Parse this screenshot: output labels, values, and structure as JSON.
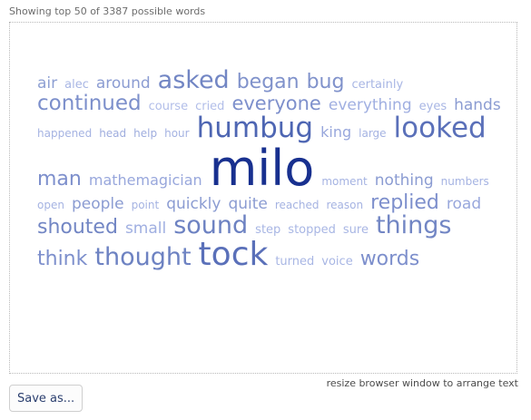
{
  "header": {
    "showing_text": "Showing top 50 of 3387 possible words"
  },
  "cloud": {
    "words": [
      {
        "text": "air",
        "size": 17,
        "color": "#8ea0d3"
      },
      {
        "text": "alec",
        "size": 13,
        "color": "#a8b6e4"
      },
      {
        "text": "around",
        "size": 17,
        "color": "#8b9cd2"
      },
      {
        "text": "asked",
        "size": 27,
        "color": "#7286c4"
      },
      {
        "text": "began",
        "size": 22,
        "color": "#8092cb"
      },
      {
        "text": "bug",
        "size": 22,
        "color": "#8092cb"
      },
      {
        "text": "certainly",
        "size": 13,
        "color": "#a8b6e4"
      },
      {
        "text": "continued",
        "size": 23,
        "color": "#7c8fcb"
      },
      {
        "text": "course",
        "size": 13,
        "color": "#b2bee9"
      },
      {
        "text": "cried",
        "size": 13,
        "color": "#b2bee9"
      },
      {
        "text": "everyone",
        "size": 21,
        "color": "#7e90cc"
      },
      {
        "text": "everything",
        "size": 17,
        "color": "#a0afe1"
      },
      {
        "text": "eyes",
        "size": 13,
        "color": "#a8b6e4"
      },
      {
        "text": "hands",
        "size": 17,
        "color": "#8b9cd2"
      },
      {
        "text": "happened",
        "size": 12,
        "color": "#a5b3e2"
      },
      {
        "text": "head",
        "size": 12,
        "color": "#9fadde"
      },
      {
        "text": "help",
        "size": 12,
        "color": "#9fadde"
      },
      {
        "text": "hour",
        "size": 12,
        "color": "#a5b3e2"
      },
      {
        "text": "humbug",
        "size": 31,
        "color": "#4e66b3"
      },
      {
        "text": "king",
        "size": 16,
        "color": "#98a7dc"
      },
      {
        "text": "large",
        "size": 12,
        "color": "#a5b3e2"
      },
      {
        "text": "looked",
        "size": 31,
        "color": "#5a70b9"
      },
      {
        "text": "man",
        "size": 22,
        "color": "#7d8fcc"
      },
      {
        "text": "mathemagician",
        "size": 16,
        "color": "#98a7dc"
      },
      {
        "text": "milo",
        "size": 54,
        "color": "#18308f"
      },
      {
        "text": "moment",
        "size": 12,
        "color": "#a5b3e2"
      },
      {
        "text": "nothing",
        "size": 17,
        "color": "#8b9cd2"
      },
      {
        "text": "numbers",
        "size": 12,
        "color": "#a5b3e2"
      },
      {
        "text": "open",
        "size": 12,
        "color": "#a5b3e2"
      },
      {
        "text": "people",
        "size": 17,
        "color": "#8b9cd2"
      },
      {
        "text": "point",
        "size": 12,
        "color": "#a5b3e2"
      },
      {
        "text": "quickly",
        "size": 17,
        "color": "#8b9cd2"
      },
      {
        "text": "quite",
        "size": 17,
        "color": "#8b9cd2"
      },
      {
        "text": "reached",
        "size": 12,
        "color": "#a5b3e2"
      },
      {
        "text": "reason",
        "size": 12,
        "color": "#a5b3e2"
      },
      {
        "text": "replied",
        "size": 22,
        "color": "#7d8fcc"
      },
      {
        "text": "road",
        "size": 17,
        "color": "#98a7dc"
      },
      {
        "text": "shouted",
        "size": 22,
        "color": "#7286c4"
      },
      {
        "text": "small",
        "size": 17,
        "color": "#a0afe1"
      },
      {
        "text": "sound",
        "size": 27,
        "color": "#6d82c2"
      },
      {
        "text": "step",
        "size": 13,
        "color": "#a8b6e4"
      },
      {
        "text": "stopped",
        "size": 13,
        "color": "#a8b6e4"
      },
      {
        "text": "sure",
        "size": 13,
        "color": "#a8b6e4"
      },
      {
        "text": "things",
        "size": 27,
        "color": "#7286c4"
      },
      {
        "text": "think",
        "size": 22,
        "color": "#7d8fcc"
      },
      {
        "text": "thought",
        "size": 27,
        "color": "#6d82c2"
      },
      {
        "text": "tock",
        "size": 36,
        "color": "#5a70b9"
      },
      {
        "text": "turned",
        "size": 13,
        "color": "#a8b6e4"
      },
      {
        "text": "voice",
        "size": 13,
        "color": "#a8b6e4"
      },
      {
        "text": "words",
        "size": 22,
        "color": "#7d8fcc"
      }
    ]
  },
  "footer": {
    "resize_hint": "resize browser window to arrange text",
    "save_label": "Save as..."
  }
}
